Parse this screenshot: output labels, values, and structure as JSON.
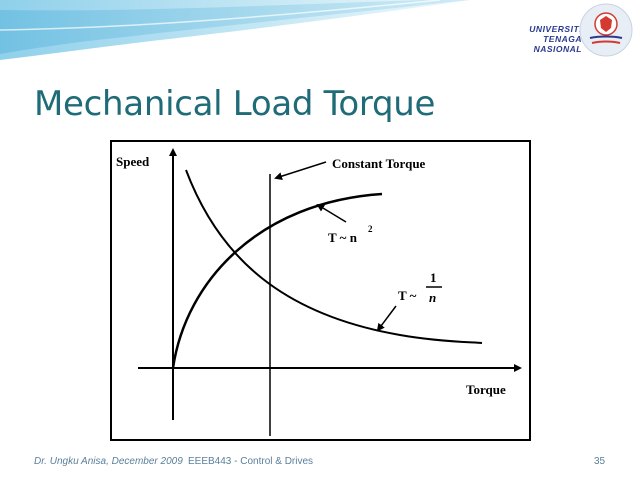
{
  "slide": {
    "title": "Mechanical Load Torque",
    "logo": {
      "lines": [
        "UNIVERSITI",
        "TENAGA",
        "NASIONAL"
      ]
    },
    "footer": {
      "author": "Dr. Ungku Anisa, December 2009",
      "course": "EEEB443 - Control & Drives",
      "page": "35"
    }
  },
  "figure": {
    "y_axis_label": "Speed",
    "x_axis_label": "Torque",
    "labels": {
      "constant": "Constant Torque",
      "square_base": "T ~ n",
      "square_exp": "2",
      "inverse_prefix": "T ~",
      "inverse_num": "1",
      "inverse_den": "n"
    }
  }
}
